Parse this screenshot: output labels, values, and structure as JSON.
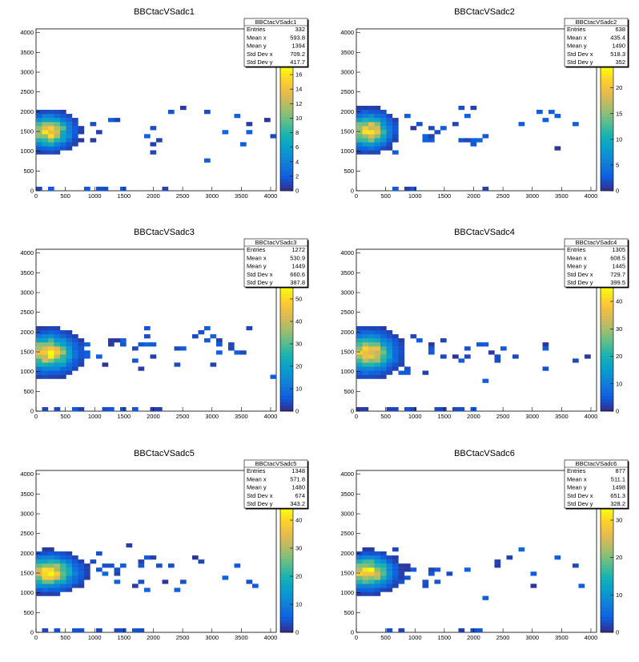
{
  "chart_data": [
    {
      "type": "heatmap",
      "title": "BBCtacVSadc1",
      "xlim": [
        0,
        4096
      ],
      "ylim": [
        0,
        4096
      ],
      "x_ticks": [
        "0",
        "500",
        "1000",
        "1500",
        "2000",
        "2500",
        "3000",
        "3500",
        "4000"
      ],
      "y_ticks": [
        "0",
        "500",
        "1000",
        "1500",
        "2000",
        "2500",
        "3000",
        "3500",
        "4000"
      ],
      "z_ticks": [
        "0",
        "2",
        "4",
        "6",
        "8",
        "10",
        "12",
        "14",
        "16"
      ],
      "zmax": 17,
      "stats": {
        "name": "BBCtacVSadc1",
        "rows": [
          {
            "label": "Entries",
            "value": "332"
          },
          {
            "label": "Mean x",
            "value": "593.8"
          },
          {
            "label": "Mean y",
            "value": "1394"
          },
          {
            "label": "Std Dev x",
            "value": "709.2"
          },
          {
            "label": "Std Dev y",
            "value": "417.7"
          }
        ]
      },
      "peak": [
        220,
        1500
      ],
      "sigma": [
        220,
        230
      ],
      "tail_density": 0.28,
      "seed": 11
    },
    {
      "type": "heatmap",
      "title": "BBCtacVSadc2",
      "xlim": [
        0,
        4096
      ],
      "ylim": [
        0,
        4096
      ],
      "x_ticks": [
        "0",
        "500",
        "1000",
        "1500",
        "2000",
        "2500",
        "3000",
        "3500",
        "4000"
      ],
      "y_ticks": [
        "0",
        "500",
        "1000",
        "1500",
        "2000",
        "2500",
        "3000",
        "3500",
        "4000"
      ],
      "z_ticks": [
        "0",
        "5",
        "10",
        "15",
        "20"
      ],
      "zmax": 24,
      "stats": {
        "name": "BBCtacVSadc2",
        "rows": [
          {
            "label": "Entries",
            "value": "638"
          },
          {
            "label": "Mean x",
            "value": "435.4"
          },
          {
            "label": "Mean y",
            "value": "1490"
          },
          {
            "label": "Std Dev x",
            "value": "518.3"
          },
          {
            "label": "Std Dev y",
            "value": "352"
          }
        ]
      },
      "peak": [
        200,
        1520
      ],
      "sigma": [
        220,
        240
      ],
      "tail_density": 0.3,
      "seed": 23
    },
    {
      "type": "heatmap",
      "title": "BBCtacVSadc3",
      "xlim": [
        0,
        4096
      ],
      "ylim": [
        0,
        4096
      ],
      "x_ticks": [
        "0",
        "500",
        "1000",
        "1500",
        "2000",
        "2500",
        "3000",
        "3500",
        "4000"
      ],
      "y_ticks": [
        "0",
        "500",
        "1000",
        "1500",
        "2000",
        "2500",
        "3000",
        "3500",
        "4000"
      ],
      "z_ticks": [
        "0",
        "10",
        "20",
        "30",
        "40",
        "50"
      ],
      "zmax": 55,
      "stats": {
        "name": "BBCtacVSadc3",
        "rows": [
          {
            "label": "Entries",
            "value": "1272"
          },
          {
            "label": "Mean x",
            "value": "530.9"
          },
          {
            "label": "Mean y",
            "value": "1449"
          },
          {
            "label": "Std Dev x",
            "value": "660.6"
          },
          {
            "label": "Std Dev y",
            "value": "387.8"
          }
        ]
      },
      "peak": [
        210,
        1480
      ],
      "sigma": [
        260,
        260
      ],
      "tail_density": 0.45,
      "seed": 37
    },
    {
      "type": "heatmap",
      "title": "BBCtacVSadc4",
      "xlim": [
        0,
        4096
      ],
      "ylim": [
        0,
        4096
      ],
      "x_ticks": [
        "0",
        "500",
        "1000",
        "1500",
        "2000",
        "2500",
        "3000",
        "3500",
        "4000"
      ],
      "y_ticks": [
        "0",
        "500",
        "1000",
        "1500",
        "2000",
        "2500",
        "3000",
        "3500",
        "4000"
      ],
      "z_ticks": [
        "0",
        "10",
        "20",
        "30",
        "40"
      ],
      "zmax": 45,
      "stats": {
        "name": "BBCtacVSadc4",
        "rows": [
          {
            "label": "Entries",
            "value": "1305"
          },
          {
            "label": "Mean x",
            "value": "608.5"
          },
          {
            "label": "Mean y",
            "value": "1445"
          },
          {
            "label": "Std Dev x",
            "value": "729.7"
          },
          {
            "label": "Std Dev y",
            "value": "399.5"
          }
        ]
      },
      "peak": [
        200,
        1480
      ],
      "sigma": [
        260,
        270
      ],
      "tail_density": 0.5,
      "seed": 53
    },
    {
      "type": "heatmap",
      "title": "BBCtacVSadc5",
      "xlim": [
        0,
        4096
      ],
      "ylim": [
        0,
        4096
      ],
      "x_ticks": [
        "0",
        "500",
        "1000",
        "1500",
        "2000",
        "2500",
        "3000",
        "3500",
        "4000"
      ],
      "y_ticks": [
        "0",
        "500",
        "1000",
        "1500",
        "2000",
        "2500",
        "3000",
        "3500",
        "4000"
      ],
      "z_ticks": [
        "0",
        "10",
        "20",
        "30",
        "40"
      ],
      "zmax": 44,
      "stats": {
        "name": "BBCtacVSadc5",
        "rows": [
          {
            "label": "Entries",
            "value": "1348"
          },
          {
            "label": "Mean x",
            "value": "571.8"
          },
          {
            "label": "Mean y",
            "value": "1480"
          },
          {
            "label": "Std Dev x",
            "value": "674"
          },
          {
            "label": "Std Dev y",
            "value": "343.2"
          }
        ]
      },
      "peak": [
        220,
        1520
      ],
      "sigma": [
        270,
        230
      ],
      "tail_density": 0.42,
      "seed": 71
    },
    {
      "type": "heatmap",
      "title": "BBCtacVSadc6",
      "xlim": [
        0,
        4096
      ],
      "ylim": [
        0,
        4096
      ],
      "x_ticks": [
        "0",
        "500",
        "1000",
        "1500",
        "2000",
        "2500",
        "3000",
        "3500",
        "4000"
      ],
      "y_ticks": [
        "0",
        "500",
        "1000",
        "1500",
        "2000",
        "2500",
        "3000",
        "3500",
        "4000"
      ],
      "z_ticks": [
        "0",
        "10",
        "20",
        "30"
      ],
      "zmax": 33,
      "stats": {
        "name": "BBCtacVSadc6",
        "rows": [
          {
            "label": "Entries",
            "value": "877"
          },
          {
            "label": "Mean x",
            "value": "511.1"
          },
          {
            "label": "Mean y",
            "value": "1498"
          },
          {
            "label": "Std Dev x",
            "value": "651.3"
          },
          {
            "label": "Std Dev y",
            "value": "328.2"
          }
        ]
      },
      "peak": [
        200,
        1520
      ],
      "sigma": [
        240,
        230
      ],
      "tail_density": 0.34,
      "seed": 89
    }
  ]
}
